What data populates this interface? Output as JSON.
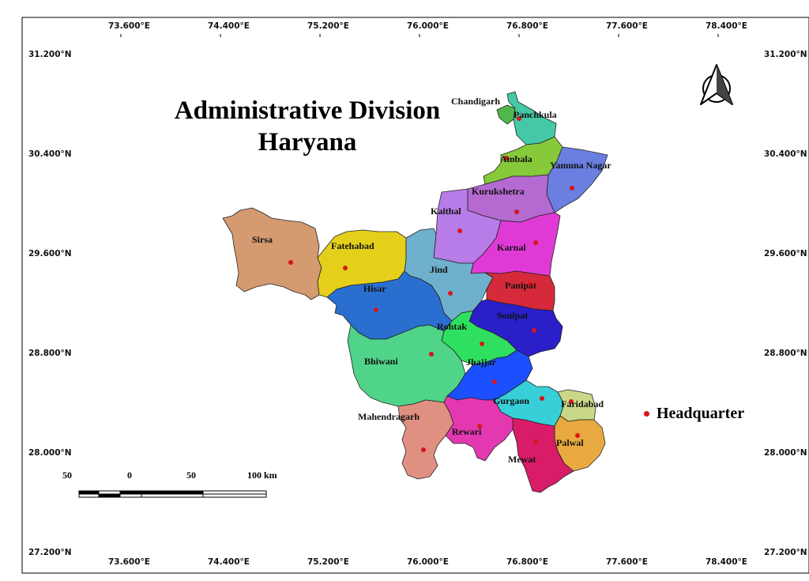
{
  "title": {
    "line1": "Administrative Division",
    "line2": "Haryana"
  },
  "longitude_ticks": [
    "73.600°E",
    "74.400°E",
    "75.200°E",
    "76.000°E",
    "76.800°E",
    "77.600°E",
    "78.400°E"
  ],
  "latitude_ticks": [
    "31.200°N",
    "30.400°N",
    "29.600°N",
    "28.800°N",
    "28.000°N",
    "27.200°N"
  ],
  "districts": [
    {
      "name": "Chandigarh",
      "color": "#4fb84a"
    },
    {
      "name": "Panchkula",
      "color": "#45c8a6"
    },
    {
      "name": "Ambala",
      "color": "#86c93b"
    },
    {
      "name": "Yamuna Nagar",
      "color": "#6b7fe0"
    },
    {
      "name": "Kurukshetra",
      "color": "#b46ad0"
    },
    {
      "name": "Kaithal",
      "color": "#b77ce8"
    },
    {
      "name": "Karnal",
      "color": "#e03ad6"
    },
    {
      "name": "Sirsa",
      "color": "#d49a70"
    },
    {
      "name": "Fatehabad",
      "color": "#e4d01a"
    },
    {
      "name": "Jind",
      "color": "#6fb0cc"
    },
    {
      "name": "Panipat",
      "color": "#d62a3a"
    },
    {
      "name": "Hisar",
      "color": "#2a6fd0"
    },
    {
      "name": "Sonipat",
      "color": "#2a1fc8"
    },
    {
      "name": "Rohtak",
      "color": "#2fe060"
    },
    {
      "name": "Bhiwani",
      "color": "#4fd48a"
    },
    {
      "name": "Jhajjar",
      "color": "#1c50ff"
    },
    {
      "name": "Gurgaon",
      "color": "#38d0d8"
    },
    {
      "name": "Faridabad",
      "color": "#c8d888"
    },
    {
      "name": "Mahendragarh",
      "color": "#e09080"
    },
    {
      "name": "Rewari",
      "color": "#e438b0"
    },
    {
      "name": "Palwal",
      "color": "#e8aa40"
    },
    {
      "name": "Mewat",
      "color": "#d81c68"
    }
  ],
  "legend": {
    "label": "Headquarter",
    "color": "#d9141c"
  },
  "scale_bar": {
    "labels": [
      "50",
      "0",
      "50",
      "100 km"
    ]
  },
  "north_arrow": "north-arrow-icon"
}
